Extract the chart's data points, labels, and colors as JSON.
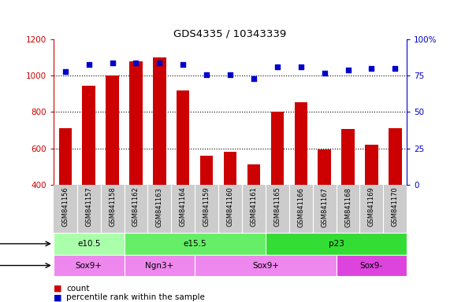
{
  "title": "GDS4335 / 10343339",
  "samples": [
    "GSM841156",
    "GSM841157",
    "GSM841158",
    "GSM841162",
    "GSM841163",
    "GSM841164",
    "GSM841159",
    "GSM841160",
    "GSM841161",
    "GSM841165",
    "GSM841166",
    "GSM841167",
    "GSM841168",
    "GSM841169",
    "GSM841170"
  ],
  "counts": [
    710,
    945,
    1000,
    1080,
    1100,
    920,
    560,
    580,
    510,
    800,
    855,
    595,
    705,
    620,
    710
  ],
  "percentiles": [
    78,
    83,
    84,
    84,
    84,
    83,
    76,
    76,
    73,
    81,
    81,
    77,
    79,
    80,
    80
  ],
  "ylim_left": [
    400,
    1200
  ],
  "ylim_right": [
    0,
    100
  ],
  "yticks_left": [
    400,
    600,
    800,
    1000,
    1200
  ],
  "yticks_right": [
    0,
    25,
    50,
    75,
    100
  ],
  "bar_color": "#cc0000",
  "dot_color": "#0000cc",
  "age_groups": [
    {
      "label": "e10.5",
      "start": 0,
      "end": 3,
      "color": "#aaffaa"
    },
    {
      "label": "e15.5",
      "start": 3,
      "end": 9,
      "color": "#66ee66"
    },
    {
      "label": "p23",
      "start": 9,
      "end": 15,
      "color": "#33dd33"
    }
  ],
  "cell_type_groups": [
    {
      "label": "Sox9+",
      "start": 0,
      "end": 3,
      "color": "#ee88ee"
    },
    {
      "label": "Ngn3+",
      "start": 3,
      "end": 6,
      "color": "#ee88ee"
    },
    {
      "label": "Sox9+",
      "start": 6,
      "end": 12,
      "color": "#ee88ee"
    },
    {
      "label": "Sox9-",
      "start": 12,
      "end": 15,
      "color": "#dd44dd"
    }
  ],
  "bg_color": "#ffffff",
  "xticklabel_bg": "#cccccc",
  "grid_yticks": [
    600,
    800,
    1000
  ]
}
